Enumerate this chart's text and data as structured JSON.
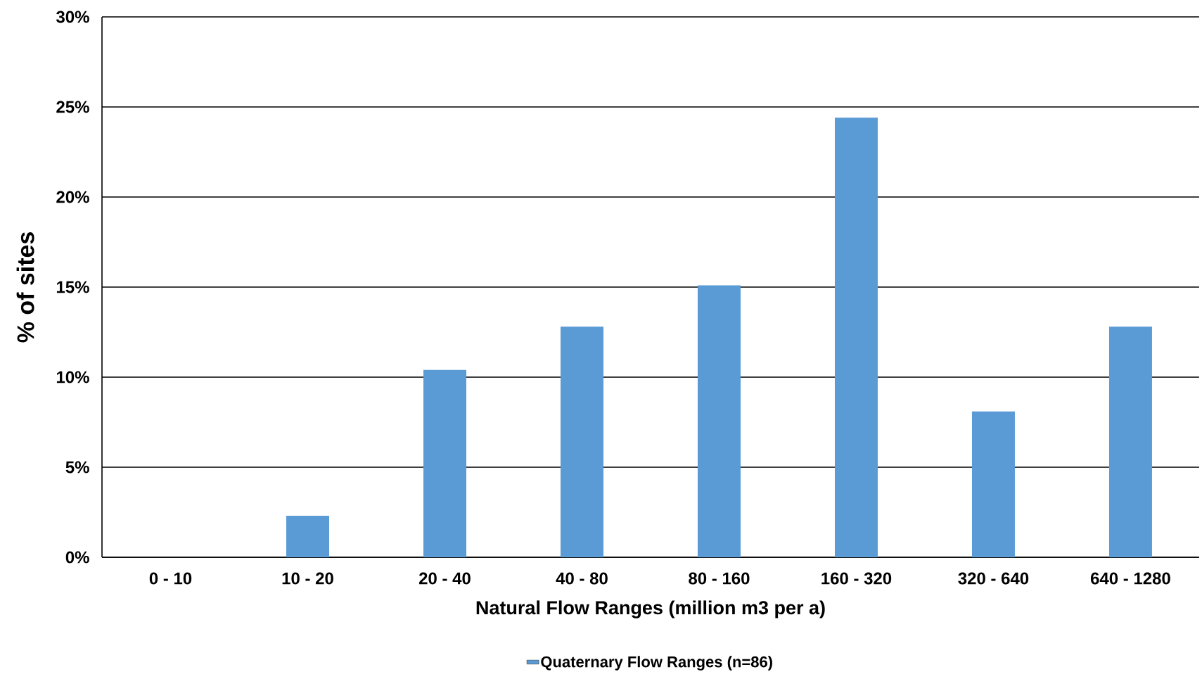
{
  "chart_data": {
    "type": "bar",
    "ylabel": "% of sites",
    "xlabel": "Natural Flow Ranges (million m3 per a)",
    "categories": [
      "0 - 10",
      "10 - 20",
      "20 - 40",
      "40 - 80",
      "80 - 160",
      "160 - 320",
      "320 - 640",
      "640 - 1280"
    ],
    "series": [
      {
        "name": "Quaternary Flow Ranges (n=86)",
        "color": "#5b9bd5",
        "values": [
          0,
          2.3,
          10.4,
          12.8,
          15.1,
          24.4,
          8.1,
          12.8
        ]
      }
    ],
    "ylim": [
      0,
      30
    ],
    "yticks": [
      {
        "value": 0,
        "label": "0%"
      },
      {
        "value": 5,
        "label": "5%"
      },
      {
        "value": 10,
        "label": "10%"
      },
      {
        "value": 15,
        "label": "15%"
      },
      {
        "value": 20,
        "label": "20%"
      },
      {
        "value": 25,
        "label": "25%"
      },
      {
        "value": 30,
        "label": "30%"
      }
    ],
    "grid": "y",
    "legend": "bottom"
  }
}
